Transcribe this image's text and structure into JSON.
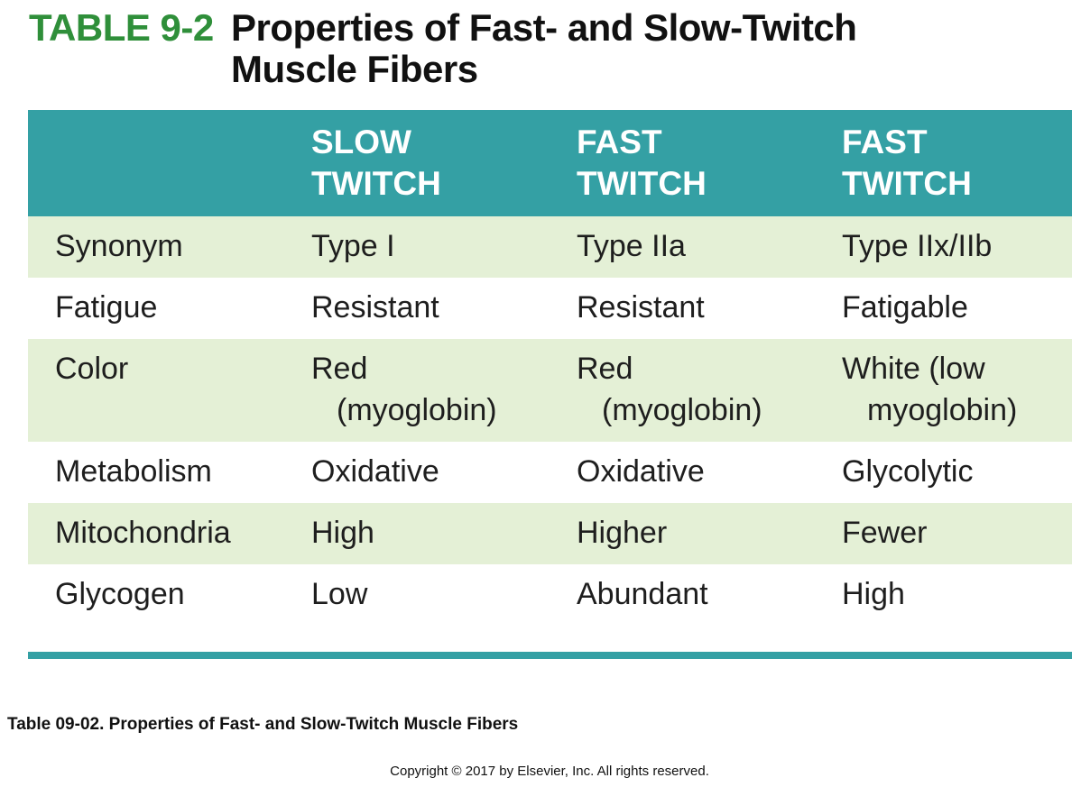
{
  "header": {
    "table_number": "TABLE 9-2",
    "title": "Properties of Fast- and Slow-Twitch Muscle Fibers"
  },
  "table": {
    "columns": [
      "",
      "SLOW\nTWITCH",
      "FAST\nTWITCH",
      "FAST\nTWITCH"
    ],
    "rows": [
      {
        "label": "Synonym",
        "cells": [
          {
            "line1": "Type I",
            "line2": ""
          },
          {
            "line1": "Type IIa",
            "line2": ""
          },
          {
            "line1": "Type IIx/IIb",
            "line2": ""
          }
        ]
      },
      {
        "label": "Fatigue",
        "cells": [
          {
            "line1": "Resistant",
            "line2": ""
          },
          {
            "line1": "Resistant",
            "line2": ""
          },
          {
            "line1": "Fatigable",
            "line2": ""
          }
        ]
      },
      {
        "label": "Color",
        "cells": [
          {
            "line1": "Red",
            "line2": "(myoglobin)"
          },
          {
            "line1": "Red",
            "line2": "(myoglobin)"
          },
          {
            "line1": "White (low",
            "line2": "myoglobin)"
          }
        ]
      },
      {
        "label": "Metabolism",
        "cells": [
          {
            "line1": "Oxidative",
            "line2": ""
          },
          {
            "line1": "Oxidative",
            "line2": ""
          },
          {
            "line1": "Glycolytic",
            "line2": ""
          }
        ]
      },
      {
        "label": "Mitochondria",
        "cells": [
          {
            "line1": "High",
            "line2": ""
          },
          {
            "line1": "Higher",
            "line2": ""
          },
          {
            "line1": "Fewer",
            "line2": ""
          }
        ]
      },
      {
        "label": "Glycogen",
        "cells": [
          {
            "line1": "Low",
            "line2": ""
          },
          {
            "line1": "Abundant",
            "line2": ""
          },
          {
            "line1": "High",
            "line2": ""
          }
        ]
      }
    ]
  },
  "caption": "Table 09-02.  Properties of Fast- and Slow-Twitch Muscle Fibers",
  "copyright": "Copyright © 2017 by Elsevier, Inc. All rights reserved.",
  "colors": {
    "table_number_green": "#2f8f3a",
    "header_teal": "#34a0a4",
    "row_shade": "#e4f0d6"
  }
}
